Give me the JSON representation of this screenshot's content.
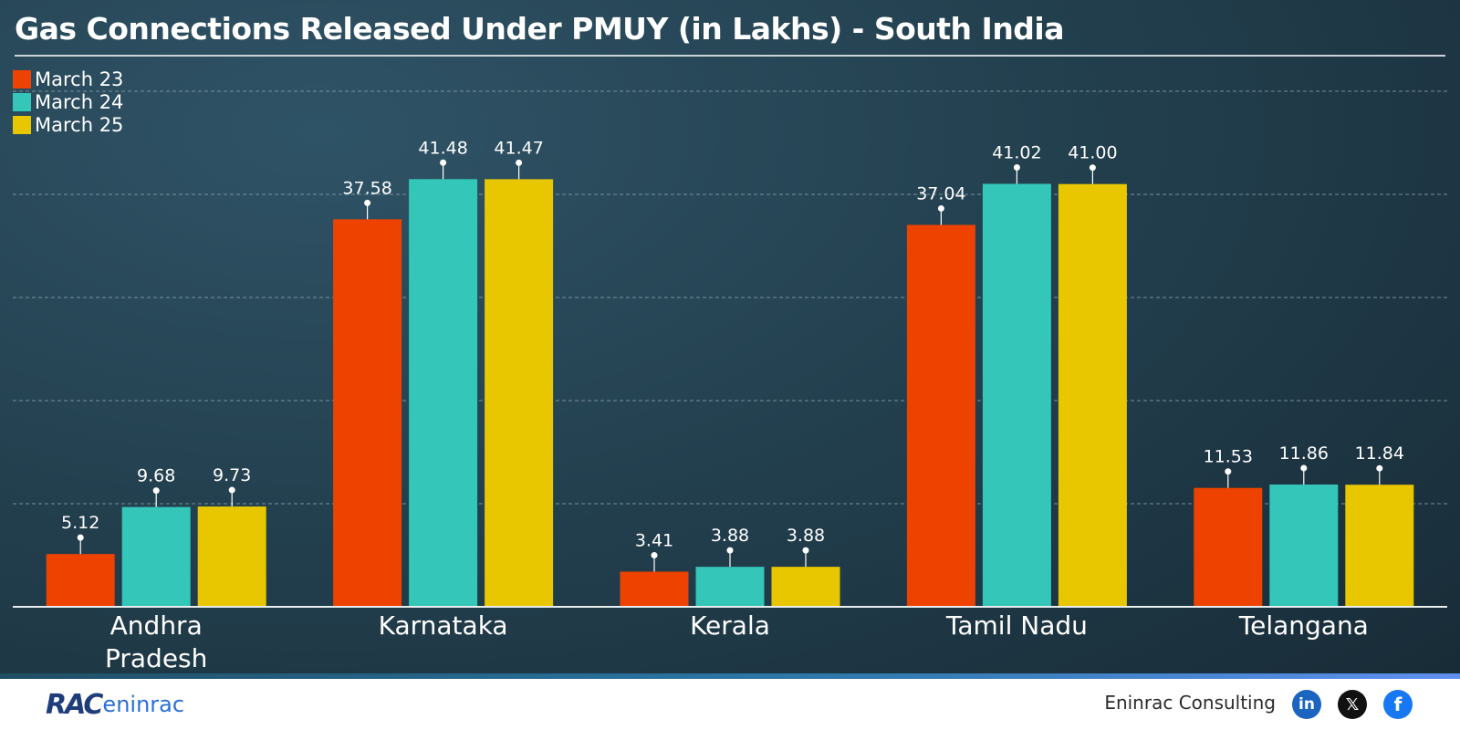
{
  "chart_data": {
    "type": "bar",
    "title": "Gas Connections Released Under PMUY (in Lakhs) - South India",
    "categories": [
      [
        "Andhra",
        "Pradesh"
      ],
      [
        "Karnataka"
      ],
      [
        "Kerala"
      ],
      [
        "Tamil Nadu"
      ],
      [
        "Telangana"
      ]
    ],
    "series": [
      {
        "name": "March 23",
        "color": "#ee4200",
        "values": [
          5.12,
          37.58,
          3.41,
          37.04,
          11.53
        ],
        "labels": [
          "5.12",
          "37.58",
          "3.41",
          "37.04",
          "11.53"
        ]
      },
      {
        "name": "March 24",
        "color": "#33c6b9",
        "values": [
          9.68,
          41.48,
          3.88,
          41.02,
          11.86
        ],
        "labels": [
          "9.68",
          "41.48",
          "3.88",
          "41.02",
          "11.86"
        ]
      },
      {
        "name": "March 25",
        "color": "#e8c700",
        "values": [
          9.73,
          41.47,
          3.88,
          41.0,
          11.84
        ],
        "labels": [
          "9.73",
          "41.47",
          "3.88",
          "41.00",
          "11.84"
        ]
      }
    ],
    "ylim": [
      0,
      50
    ],
    "grid": true,
    "legend": "top-left",
    "xlabel": "",
    "ylabel": ""
  },
  "footer": {
    "logo_rac": "RAC",
    "logo_eninrac": "eninrac",
    "brand": "Eninrac Consulting",
    "icons": [
      "linkedin-icon",
      "x-icon",
      "facebook-icon"
    ]
  }
}
